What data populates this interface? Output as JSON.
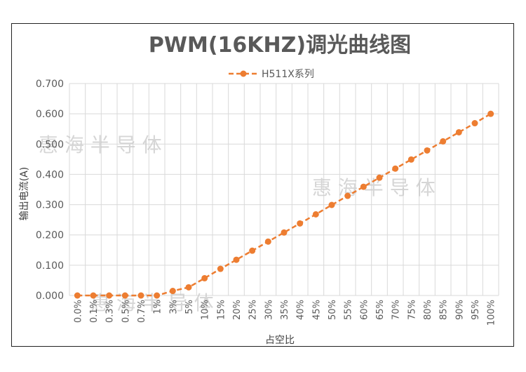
{
  "chart_data": {
    "type": "line",
    "title": "PWM(16KHZ)调光曲线图",
    "xlabel": "占空比",
    "ylabel": "输出电流(A)",
    "categories": [
      "0.0%",
      "0.1%",
      "0.3%",
      "0.5%",
      "0.7%",
      "1%",
      "3%",
      "5%",
      "10%",
      "15%",
      "20%",
      "25%",
      "30%",
      "35%",
      "40%",
      "45%",
      "50%",
      "55%",
      "60%",
      "65%",
      "70%",
      "75%",
      "80%",
      "85%",
      "90%",
      "95%",
      "100%"
    ],
    "series": [
      {
        "name": "H511X系列",
        "values": [
          0.0,
          0.0,
          0.0,
          0.0,
          0.0,
          0.0,
          0.015,
          0.027,
          0.057,
          0.088,
          0.118,
          0.148,
          0.178,
          0.208,
          0.238,
          0.268,
          0.299,
          0.329,
          0.359,
          0.389,
          0.419,
          0.449,
          0.479,
          0.509,
          0.539,
          0.569,
          0.6
        ]
      }
    ],
    "ylim": [
      0,
      0.7
    ],
    "yticks": [
      "0.000",
      "0.100",
      "0.200",
      "0.300",
      "0.400",
      "0.500",
      "0.600",
      "0.700"
    ],
    "grid": true,
    "legend": "top-center",
    "colors": {
      "series": "#ED7D31",
      "grid": "#d9d9d9",
      "text": "#595959"
    }
  },
  "watermarks": [
    "惠 海 半 导 体",
    "惠 海 半 导 体",
    "惠 海 半 导 体"
  ]
}
